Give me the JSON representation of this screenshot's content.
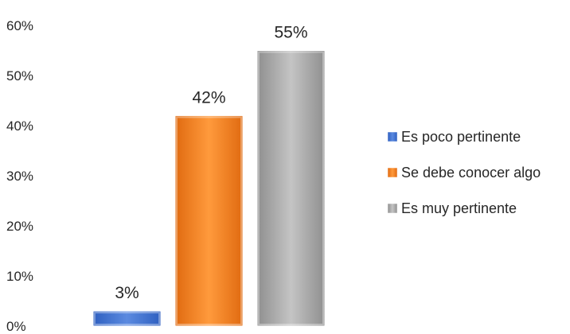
{
  "chart_data": {
    "type": "bar",
    "categories": [
      "Es poco pertinente",
      "Se debe conocer algo",
      "Es muy pertinente"
    ],
    "values": [
      3,
      42,
      55
    ],
    "value_labels": [
      "3%",
      "42%",
      "55%"
    ],
    "colors": [
      "#3f6fd0",
      "#f07a1a",
      "#a8a8a8"
    ],
    "ylim": [
      0,
      60
    ],
    "yticks": [
      "0%",
      "10%",
      "20%",
      "30%",
      "40%",
      "50%",
      "60%"
    ],
    "grid": false,
    "legend": "right",
    "title": "",
    "xlabel": "",
    "ylabel": ""
  }
}
